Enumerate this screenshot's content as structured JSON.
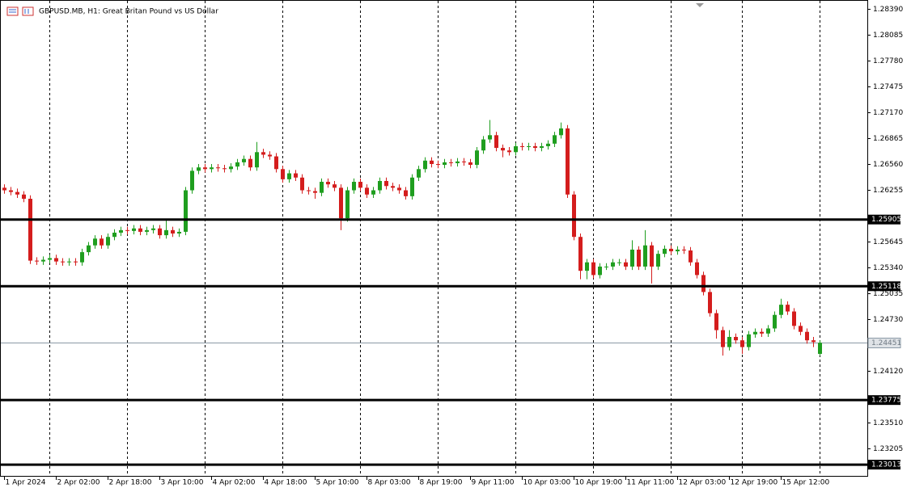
{
  "chart_data": {
    "type": "candlestick",
    "title": "GBPUSD.MB, H1:  Great Britan Pound vs US Dollar",
    "categories": [
      "1 Apr 2024",
      null,
      null,
      null,
      null,
      null,
      null,
      null,
      "2 Apr 02:00",
      null,
      null,
      null,
      null,
      null,
      null,
      null,
      "2 Apr 18:00",
      null,
      null,
      null,
      null,
      null,
      null,
      null,
      "3 Apr 10:00",
      null,
      null,
      null,
      null,
      null,
      null,
      null,
      "4 Apr 02:00",
      null,
      null,
      null,
      null,
      null,
      null,
      null,
      "4 Apr 18:00",
      null,
      null,
      null,
      null,
      null,
      null,
      null,
      "5 Apr 10:00",
      null,
      null,
      null,
      null,
      null,
      null,
      null,
      "8 Apr 03:00",
      null,
      null,
      null,
      null,
      null,
      null,
      null,
      "8 Apr 19:00",
      null,
      null,
      null,
      null,
      null,
      null,
      null,
      "9 Apr 11:00",
      null,
      null,
      null,
      null,
      null,
      null,
      null,
      "10 Apr 03:00",
      null,
      null,
      null,
      null,
      null,
      null,
      null,
      "10 Apr 19:00",
      null,
      null,
      null,
      null,
      null,
      null,
      null,
      "11 Apr 11:00",
      null,
      null,
      null,
      null,
      null,
      null,
      null,
      "12 Apr 03:00",
      null,
      null,
      null,
      null,
      null,
      null,
      null,
      "12 Apr 19:00",
      null,
      null,
      null,
      null,
      null,
      null,
      null,
      "15 Apr 12:00",
      null,
      null,
      null,
      null,
      null,
      null
    ],
    "open": [
      1.2628,
      1.2625,
      1.2623,
      1.262,
      1.2615,
      1.2542,
      1.2541,
      1.2543,
      1.2545,
      1.2541,
      1.254,
      1.2541,
      1.254,
      1.2552,
      1.256,
      1.2568,
      1.256,
      1.257,
      1.2575,
      1.2578,
      1.2577,
      1.258,
      1.2576,
      1.2578,
      1.258,
      1.2572,
      1.2578,
      1.2574,
      1.2576,
      1.2625,
      1.2648,
      1.2652,
      1.265,
      1.2652,
      1.2651,
      1.265,
      1.2653,
      1.2658,
      1.2662,
      1.2652,
      1.267,
      1.2667,
      1.2665,
      1.265,
      1.2638,
      1.2645,
      1.264,
      1.2625,
      1.2624,
      1.2622,
      1.2635,
      1.2632,
      1.2628,
      1.2592,
      1.2625,
      1.2635,
      1.2628,
      1.262,
      1.2625,
      1.2636,
      1.263,
      1.2628,
      1.2625,
      1.2618,
      1.264,
      1.265,
      1.266,
      1.2656,
      1.2655,
      1.2658,
      1.2657,
      1.2659,
      1.2658,
      1.2655,
      1.2672,
      1.2685,
      1.269,
      1.2675,
      1.2672,
      1.267,
      1.2677,
      1.2676,
      1.2677,
      1.2675,
      1.2677,
      1.268,
      1.269,
      1.2698,
      1.262,
      1.257,
      1.253,
      1.254,
      1.2525,
      1.2535,
      1.2535,
      1.254,
      1.254,
      1.2535,
      1.2555,
      1.2535,
      1.256,
      1.2535,
      1.255,
      1.2556,
      1.2553,
      1.2555,
      1.2554,
      1.254,
      1.2525,
      1.2505,
      1.248,
      1.246,
      1.244,
      1.2452,
      1.2448,
      1.244,
      1.2455,
      1.2458,
      1.2456,
      1.2462,
      1.2478,
      1.249,
      1.2482,
      1.2465,
      1.2458,
      1.2448,
      1.2432
    ],
    "high": [
      1.2632,
      1.2629,
      1.2627,
      1.2624,
      1.2619,
      1.2546,
      1.2547,
      1.2549,
      1.2549,
      1.2545,
      1.2545,
      1.2545,
      1.2556,
      1.2564,
      1.2572,
      1.2572,
      1.2574,
      1.2579,
      1.2582,
      1.2582,
      1.2584,
      1.2584,
      1.2582,
      1.2584,
      1.2584,
      1.259,
      1.2582,
      1.258,
      1.2629,
      1.2652,
      1.2656,
      1.2656,
      1.2656,
      1.2656,
      1.2655,
      1.2657,
      1.2662,
      1.2666,
      1.2666,
      1.2682,
      1.2674,
      1.2671,
      1.2669,
      1.2654,
      1.2649,
      1.2649,
      1.2644,
      1.2629,
      1.2628,
      1.2639,
      1.2639,
      1.2636,
      1.2632,
      1.2629,
      1.2639,
      1.2639,
      1.2632,
      1.2629,
      1.264,
      1.264,
      1.2634,
      1.2632,
      1.2629,
      1.2644,
      1.2654,
      1.2664,
      1.2664,
      1.266,
      1.2662,
      1.2662,
      1.2663,
      1.2663,
      1.2662,
      1.2676,
      1.2689,
      1.2708,
      1.2694,
      1.2679,
      1.2676,
      1.2681,
      1.2681,
      1.2681,
      1.2681,
      1.2681,
      1.2684,
      1.2694,
      1.2705,
      1.2702,
      1.2624,
      1.2574,
      1.2544,
      1.2544,
      1.2539,
      1.2539,
      1.2544,
      1.2544,
      1.2544,
      1.2566,
      1.2559,
      1.2578,
      1.2564,
      1.2554,
      1.256,
      1.256,
      1.2559,
      1.2559,
      1.2558,
      1.2544,
      1.2529,
      1.2509,
      1.2484,
      1.2464,
      1.246,
      1.2456,
      1.2452,
      1.2459,
      1.2462,
      1.2462,
      1.2466,
      1.2482,
      1.2497,
      1.2494,
      1.2486,
      1.2469,
      1.2462,
      1.2452,
      1.2448
    ],
    "low": [
      1.2621,
      1.2619,
      1.2616,
      1.2611,
      1.2538,
      1.2537,
      1.2537,
      1.2539,
      1.2537,
      1.2536,
      1.2536,
      1.2536,
      1.2536,
      1.2548,
      1.2556,
      1.2556,
      1.2556,
      1.2566,
      1.2571,
      1.2573,
      1.2573,
      1.2572,
      1.2572,
      1.2574,
      1.2568,
      1.2568,
      1.257,
      1.257,
      1.2572,
      1.2621,
      1.2644,
      1.2646,
      1.2646,
      1.2647,
      1.2646,
      1.2646,
      1.2649,
      1.2654,
      1.2648,
      1.2648,
      1.2663,
      1.2661,
      1.2646,
      1.2634,
      1.2634,
      1.2636,
      1.2621,
      1.262,
      1.2615,
      1.2618,
      1.2628,
      1.2624,
      1.2578,
      1.2588,
      1.2621,
      1.2624,
      1.2616,
      1.2616,
      1.2621,
      1.2626,
      1.2624,
      1.2621,
      1.2614,
      1.2614,
      1.2636,
      1.2646,
      1.2652,
      1.2651,
      1.2651,
      1.2653,
      1.2653,
      1.2654,
      1.2651,
      1.2651,
      1.2668,
      1.2681,
      1.2671,
      1.2664,
      1.2666,
      1.2666,
      1.2672,
      1.2672,
      1.2671,
      1.2671,
      1.2673,
      1.2676,
      1.2686,
      1.2616,
      1.2566,
      1.252,
      1.252,
      1.2521,
      1.2521,
      1.2531,
      1.2531,
      1.2536,
      1.2531,
      1.2531,
      1.2531,
      1.2531,
      1.2515,
      1.2531,
      1.2546,
      1.2549,
      1.2549,
      1.255,
      1.2536,
      1.2521,
      1.2501,
      1.2476,
      1.245,
      1.243,
      1.2436,
      1.2444,
      1.2432,
      1.2436,
      1.2451,
      1.2452,
      1.2452,
      1.2458,
      1.2474,
      1.2478,
      1.2461,
      1.2454,
      1.2444,
      1.244,
      1.243
    ],
    "close": [
      1.2625,
      1.2623,
      1.262,
      1.2615,
      1.2542,
      1.2541,
      1.2543,
      1.2545,
      1.2541,
      1.254,
      1.2541,
      1.254,
      1.2552,
      1.256,
      1.2568,
      1.256,
      1.257,
      1.2575,
      1.2578,
      1.2577,
      1.258,
      1.2576,
      1.2578,
      1.258,
      1.2572,
      1.2578,
      1.2574,
      1.2576,
      1.2625,
      1.2648,
      1.2652,
      1.265,
      1.2652,
      1.2651,
      1.265,
      1.2653,
      1.2658,
      1.2662,
      1.2652,
      1.267,
      1.2667,
      1.2665,
      1.265,
      1.2638,
      1.2645,
      1.264,
      1.2625,
      1.2624,
      1.2622,
      1.2635,
      1.2632,
      1.2628,
      1.2592,
      1.2625,
      1.2635,
      1.2628,
      1.262,
      1.2625,
      1.2636,
      1.263,
      1.2628,
      1.2625,
      1.2618,
      1.264,
      1.265,
      1.266,
      1.2656,
      1.2655,
      1.2658,
      1.2657,
      1.2659,
      1.2658,
      1.2655,
      1.2672,
      1.2685,
      1.269,
      1.2675,
      1.2672,
      1.267,
      1.2677,
      1.2676,
      1.2677,
      1.2675,
      1.2677,
      1.268,
      1.269,
      1.2698,
      1.262,
      1.257,
      1.253,
      1.254,
      1.2525,
      1.2535,
      1.2535,
      1.254,
      1.254,
      1.2535,
      1.2555,
      1.2535,
      1.256,
      1.2535,
      1.255,
      1.2556,
      1.2553,
      1.2555,
      1.2554,
      1.254,
      1.2525,
      1.2505,
      1.248,
      1.246,
      1.244,
      1.2452,
      1.2448,
      1.244,
      1.2455,
      1.2458,
      1.2456,
      1.2462,
      1.2478,
      1.249,
      1.2482,
      1.2465,
      1.2458,
      1.2448,
      1.2446,
      1.24451
    ],
    "up_color": "#1f9e1f",
    "down_color": "#d41d1d",
    "ylim": [
      1.22871,
      1.28495
    ],
    "yticks": [
      {
        "value": 1.2839,
        "label": "1.28390"
      },
      {
        "value": 1.28085,
        "label": "1.28085"
      },
      {
        "value": 1.2778,
        "label": "1.27780"
      },
      {
        "value": 1.27475,
        "label": "1.27475"
      },
      {
        "value": 1.2717,
        "label": "1.27170"
      },
      {
        "value": 1.26865,
        "label": "1.26865"
      },
      {
        "value": 1.2656,
        "label": "1.26560"
      },
      {
        "value": 1.26255,
        "label": "1.26255"
      },
      {
        "value": 1.25645,
        "label": "1.25645"
      },
      {
        "value": 1.2534,
        "label": "1.25340"
      },
      {
        "value": 1.25035,
        "label": "1.25035"
      },
      {
        "value": 1.2473,
        "label": "1.24730"
      },
      {
        "value": 1.2412,
        "label": "1.24120"
      },
      {
        "value": 1.2351,
        "label": "1.23510"
      },
      {
        "value": 1.23205,
        "label": "1.23205"
      }
    ],
    "levels": [
      {
        "value": 1.25905,
        "label": "1.25905"
      },
      {
        "value": 1.25118,
        "label": "1.25118"
      },
      {
        "value": 1.23775,
        "label": "1.23775"
      },
      {
        "value": 1.23013,
        "label": "1.23013"
      }
    ],
    "price_line": {
      "value": 1.24451,
      "label": "1.24451"
    },
    "grid": true
  }
}
